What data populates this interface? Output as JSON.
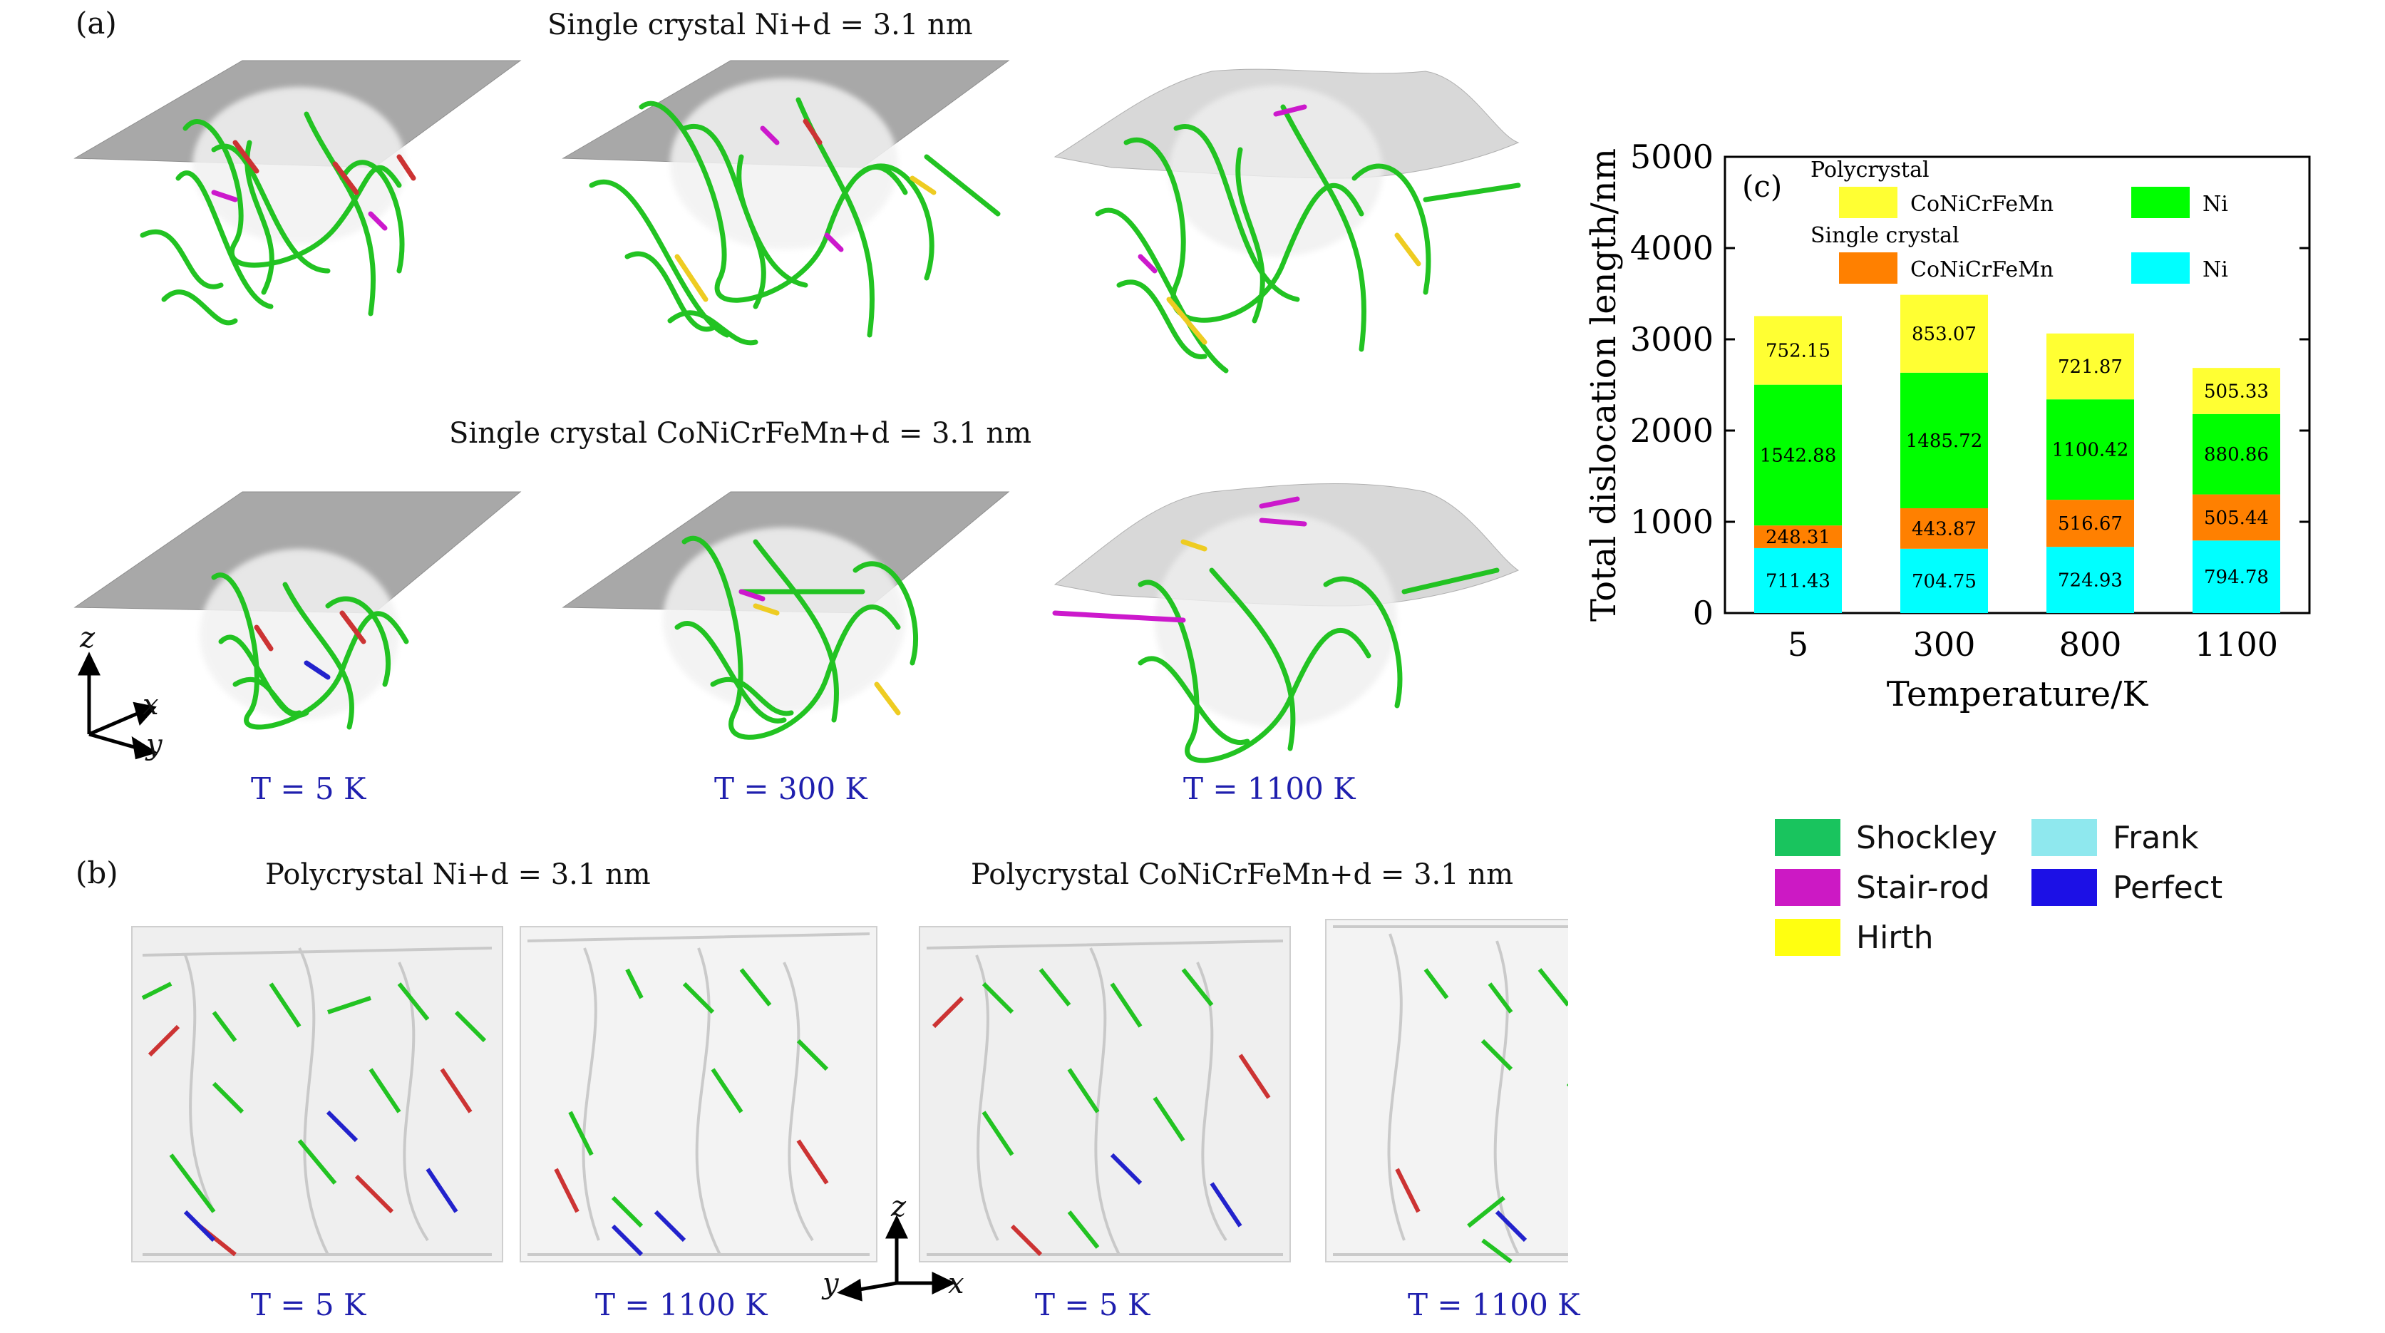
{
  "panel_a": {
    "label": "(a)",
    "caption_top": "Single crystal Ni+d = 3.1 nm",
    "caption_mid": "Single crystal CoNiCrFeMn+d = 3.1 nm",
    "temps": [
      "T = 5 K",
      "T = 300 K",
      "T = 1100 K"
    ],
    "axes": {
      "z": "z",
      "x": "x",
      "y": "y"
    }
  },
  "panel_b": {
    "label": "(b)",
    "caption_left": "Polycrystal Ni+d = 3.1 nm",
    "caption_right": "Polycrystal CoNiCrFeMn+d = 3.1 nm",
    "temps": [
      "T = 5 K",
      "T = 1100 K",
      "T = 5 K",
      "T = 1100 K"
    ],
    "axes": {
      "z": "z",
      "x": "x",
      "y": "y"
    }
  },
  "dislocation_legend": {
    "items": [
      {
        "label": "Shockley",
        "color": "#19c45e"
      },
      {
        "label": "Frank",
        "color": "#8fe8ee"
      },
      {
        "label": "Stair-rod",
        "color": "#cc19c4"
      },
      {
        "label": "Perfect",
        "color": "#1c10e6"
      },
      {
        "label": "Hirth",
        "color": "#ffff10"
      }
    ]
  },
  "chart_data": {
    "type": "bar",
    "stacked": true,
    "panel_label": "(c)",
    "categories": [
      "5",
      "300",
      "800",
      "1100"
    ],
    "xlabel": "Temperature/K",
    "ylabel": "Total dislocation length/nm",
    "ylim": [
      0,
      5000
    ],
    "yticks": [
      0,
      1000,
      2000,
      3000,
      4000,
      5000
    ],
    "legend_groups": [
      "Polycrystal",
      "Single crystal"
    ],
    "series": [
      {
        "name": "Ni",
        "group": "Single crystal",
        "color": "#00ffff",
        "values": [
          711.43,
          704.75,
          724.93,
          794.78
        ],
        "labels": [
          "711.43",
          "704.75",
          "724.93",
          "794.78"
        ]
      },
      {
        "name": "CoNiCrFeMn",
        "group": "Single crystal",
        "color": "#ff8000",
        "values": [
          248.31,
          443.87,
          516.67,
          505.44
        ],
        "labels": [
          "248.31",
          "443.87",
          "516.67",
          "505.44"
        ]
      },
      {
        "name": "Ni",
        "group": "Polycrystal",
        "color": "#00ff00",
        "values": [
          1542.88,
          1485.72,
          1100.42,
          880.86
        ],
        "labels": [
          "1542.88",
          "1485.72",
          "1100.42",
          "880.86"
        ]
      },
      {
        "name": "CoNiCrFeMn",
        "group": "Polycrystal",
        "color": "#ffff33",
        "values": [
          752.15,
          853.07,
          721.87,
          505.33
        ],
        "labels": [
          "752.15",
          "853.07",
          "721.87",
          "505.33"
        ]
      }
    ]
  }
}
